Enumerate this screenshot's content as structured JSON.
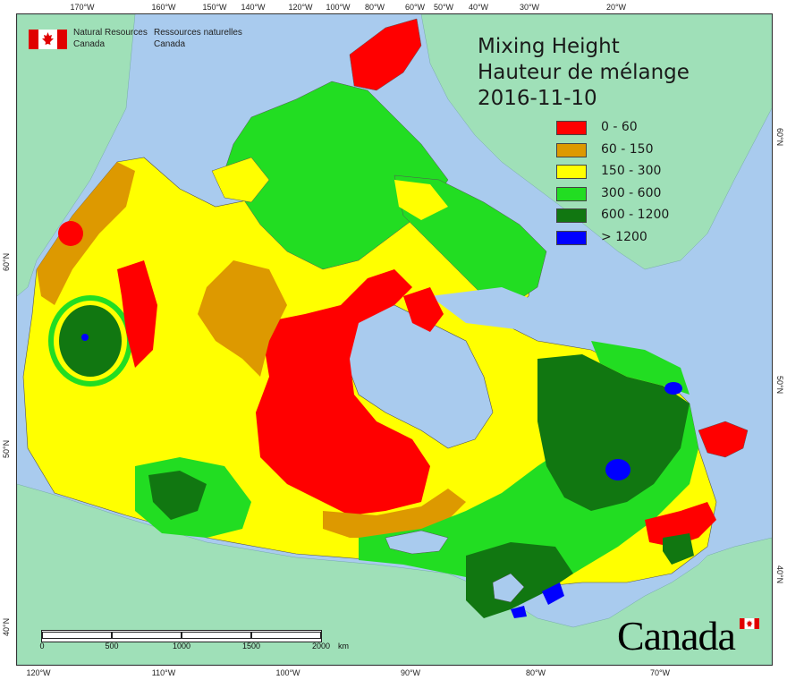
{
  "map": {
    "title_en": "Mixing Height",
    "title_fr": "Hauteur de mélange",
    "date": "2016-11-10",
    "agency_en_1": "Natural Resources",
    "agency_en_2": "Canada",
    "agency_fr_1": "Ressources naturelles",
    "agency_fr_2": "Canada",
    "wordmark": "Canada",
    "legend": [
      {
        "label": "0 - 60",
        "color": "#ff0000"
      },
      {
        "label": "60 - 150",
        "color": "#dd9900"
      },
      {
        "label": "150 - 300",
        "color": "#ffff00"
      },
      {
        "label": "300 - 600",
        "color": "#22dd22"
      },
      {
        "label": "600 - 1200",
        "color": "#117711"
      },
      {
        "label": "> 1200",
        "color": "#0000ff"
      }
    ],
    "top_ticks": [
      "170°W",
      "160°W",
      "150°W",
      "140°W",
      "120°W",
      "100°W",
      "80°W",
      "60°W",
      "50°W",
      "40°W",
      "30°W",
      "20°W"
    ],
    "bottom_ticks": [
      "120°W",
      "110°W",
      "100°W",
      "90°W",
      "80°W",
      "70°W"
    ],
    "left_ticks": [
      "60°N",
      "50°N",
      "40°N"
    ],
    "right_ticks": [
      "60°N",
      "50°N",
      "40°N"
    ],
    "scale": {
      "labels": [
        "0",
        "500",
        "1000",
        "1500",
        "2000"
      ],
      "unit": "km"
    },
    "colors": {
      "ocean": "#a9cbee",
      "foreign_land": "#9fe0b8",
      "flag_red": "#e00000"
    }
  }
}
